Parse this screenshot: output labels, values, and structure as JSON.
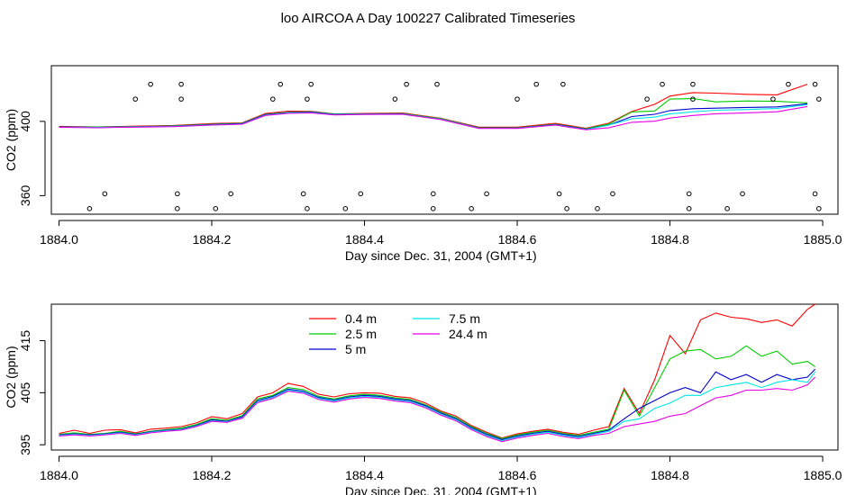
{
  "title": "loo AIRCOA A  Day 100227  Calibrated Timeseries",
  "colors": {
    "0.4 m": "#ff0000",
    "2.5 m": "#00cc00",
    "5 m": "#0000cc",
    "7.5 m": "#00e5e5",
    "24.4 m": "#e600e6",
    "axis": "#000000"
  },
  "chart_data": [
    {
      "type": "line",
      "xlabel": "Day since Dec. 31, 2004 (GMT+1)",
      "ylabel": "CO2 (ppm)",
      "xlim": [
        1883.99,
        1885.02
      ],
      "ylim": [
        350,
        430
      ],
      "xticks": [
        1884.0,
        1884.2,
        1884.4,
        1884.6,
        1884.8,
        1885.0
      ],
      "xtick_labels": [
        "1884.0",
        "1884.2",
        "1884.4",
        "1884.6",
        "1884.8",
        "1885.0"
      ],
      "yticks": [
        360,
        400
      ],
      "ytick_labels": [
        "360",
        "400"
      ],
      "grid": false,
      "x": [
        1884.0,
        1884.05,
        1884.1,
        1884.15,
        1884.2,
        1884.24,
        1884.27,
        1884.3,
        1884.33,
        1884.36,
        1884.4,
        1884.45,
        1884.5,
        1884.55,
        1884.6,
        1884.65,
        1884.69,
        1884.72,
        1884.75,
        1884.78,
        1884.8,
        1884.83,
        1884.86,
        1884.9,
        1884.94,
        1884.98
      ],
      "series": [
        {
          "name": "0.4 m",
          "values": [
            397.3,
            397.0,
            397.4,
            397.8,
            398.8,
            399.2,
            404.2,
            405.5,
            405.4,
            404.0,
            404.3,
            404.5,
            401.7,
            396.9,
            396.9,
            398.9,
            396.3,
            399.0,
            405.3,
            409.2,
            413.6,
            415.5,
            415.2,
            414.6,
            414.3,
            420.0
          ]
        },
        {
          "name": "2.5 m",
          "values": [
            397.0,
            397.0,
            397.2,
            397.6,
            398.5,
            399.0,
            403.8,
            404.9,
            405.2,
            404.0,
            404.0,
            404.2,
            401.5,
            396.6,
            396.6,
            398.5,
            396.0,
            398.6,
            405.1,
            405.6,
            412.0,
            412.3,
            410.5,
            411.0,
            410.8,
            410.0
          ]
        },
        {
          "name": "5 m",
          "values": [
            397.0,
            396.8,
            397.1,
            397.4,
            398.3,
            398.8,
            403.6,
            404.7,
            405.0,
            403.8,
            403.9,
            404.0,
            401.2,
            396.4,
            396.4,
            398.3,
            395.8,
            398.0,
            402.6,
            403.8,
            405.8,
            406.8,
            407.1,
            407.5,
            407.8,
            409.5
          ]
        },
        {
          "name": "7.5 m",
          "values": [
            396.9,
            396.7,
            397.0,
            397.3,
            398.1,
            398.6,
            403.4,
            404.5,
            404.8,
            403.6,
            403.8,
            403.9,
            401.1,
            396.3,
            396.3,
            398.1,
            395.6,
            398.0,
            401.4,
            402.3,
            404.0,
            405.2,
            406.0,
            406.4,
            406.9,
            409.0
          ]
        },
        {
          "name": "24.4 m",
          "values": [
            396.8,
            396.6,
            396.9,
            397.2,
            398.0,
            398.5,
            403.2,
            404.3,
            404.6,
            403.5,
            403.7,
            403.8,
            401.0,
            396.2,
            396.2,
            398.0,
            395.5,
            396.6,
            399.5,
            400.1,
            401.8,
            403.2,
            404.1,
            404.6,
            405.2,
            408.0
          ]
        }
      ],
      "points": {
        "x": [
          1884.04,
          1884.06,
          1884.1,
          1884.12,
          1884.155,
          1884.155,
          1884.16,
          1884.16,
          1884.205,
          1884.225,
          1884.28,
          1884.29,
          1884.32,
          1884.325,
          1884.325,
          1884.33,
          1884.375,
          1884.395,
          1884.44,
          1884.455,
          1884.49,
          1884.49,
          1884.495,
          1884.54,
          1884.56,
          1884.6,
          1884.625,
          1884.655,
          1884.66,
          1884.665,
          1884.705,
          1884.725,
          1884.77,
          1884.79,
          1884.825,
          1884.825,
          1884.83,
          1884.83,
          1884.875,
          1884.895,
          1884.935,
          1884.955,
          1884.99,
          1884.99,
          1884.995,
          1884.995
        ],
        "y": [
          353,
          361,
          412,
          420,
          353,
          361,
          412,
          420,
          353,
          361,
          412,
          420,
          361,
          353,
          412,
          420,
          353,
          361,
          412,
          420,
          353,
          361,
          420,
          353,
          361,
          412,
          420,
          361,
          420,
          353,
          353,
          361,
          412,
          420,
          353,
          361,
          412,
          420,
          353,
          361,
          412,
          420,
          361,
          420,
          412,
          353
        ]
      }
    },
    {
      "type": "line",
      "xlabel": "Day since Dec. 31, 2004 (GMT+1)",
      "ylabel": "CO2 (ppm)",
      "xlim": [
        1883.99,
        1885.02
      ],
      "ylim": [
        394,
        422
      ],
      "xticks": [
        1884.0,
        1884.2,
        1884.4,
        1884.6,
        1884.8,
        1885.0
      ],
      "xtick_labels": [
        "1884.0",
        "1884.2",
        "1884.4",
        "1884.6",
        "1884.8",
        "1885.0"
      ],
      "yticks": [
        395,
        405,
        415
      ],
      "ytick_labels": [
        "395",
        "405",
        "415"
      ],
      "grid": false,
      "legend": [
        "0.4 m",
        "2.5 m",
        "5 m",
        "7.5 m",
        "24.4 m"
      ],
      "legend_position": "top-left",
      "x": [
        1884.0,
        1884.02,
        1884.04,
        1884.06,
        1884.08,
        1884.1,
        1884.12,
        1884.14,
        1884.16,
        1884.18,
        1884.2,
        1884.22,
        1884.24,
        1884.26,
        1884.28,
        1884.3,
        1884.32,
        1884.34,
        1884.36,
        1884.38,
        1884.4,
        1884.42,
        1884.44,
        1884.46,
        1884.48,
        1884.5,
        1884.52,
        1884.54,
        1884.56,
        1884.58,
        1884.6,
        1884.62,
        1884.64,
        1884.66,
        1884.68,
        1884.7,
        1884.72,
        1884.74,
        1884.76,
        1884.78,
        1884.8,
        1884.82,
        1884.84,
        1884.86,
        1884.88,
        1884.9,
        1884.92,
        1884.94,
        1884.96,
        1884.98,
        1884.99
      ],
      "series": [
        {
          "name": "0.4 m",
          "values": [
            397.2,
            397.8,
            397.2,
            397.8,
            397.9,
            397.3,
            398.0,
            398.2,
            398.5,
            399.2,
            400.4,
            400.0,
            401.0,
            404.2,
            405.0,
            406.8,
            406.2,
            404.7,
            404.2,
            404.8,
            405.0,
            404.9,
            404.3,
            404.0,
            403.0,
            401.5,
            400.5,
            398.7,
            397.4,
            396.3,
            397.1,
            397.6,
            398.0,
            397.4,
            397.0,
            397.8,
            398.5,
            405.8,
            401.0,
            407.5,
            416.0,
            412.5,
            419.0,
            420.3,
            419.5,
            419.2,
            418.5,
            419.0,
            417.8,
            421.0,
            422.0
          ]
        },
        {
          "name": "2.5 m",
          "values": [
            397.0,
            397.3,
            397.0,
            397.2,
            397.6,
            397.1,
            397.6,
            397.9,
            398.2,
            398.9,
            400.0,
            399.7,
            400.6,
            403.8,
            404.5,
            406.0,
            405.6,
            404.3,
            403.8,
            404.4,
            404.7,
            404.5,
            404.0,
            403.7,
            402.7,
            401.3,
            400.2,
            398.5,
            397.2,
            396.2,
            396.9,
            397.4,
            397.8,
            397.2,
            396.8,
            397.4,
            398.0,
            405.5,
            400.5,
            406.0,
            411.5,
            413.0,
            413.3,
            411.5,
            412.0,
            414.0,
            412.0,
            413.0,
            410.5,
            411.0,
            410.0
          ]
        },
        {
          "name": "5 m",
          "values": [
            396.9,
            397.1,
            396.9,
            397.1,
            397.4,
            397.0,
            397.5,
            397.8,
            398.0,
            398.7,
            399.8,
            399.5,
            400.4,
            403.5,
            404.3,
            405.7,
            405.3,
            404.1,
            403.6,
            404.2,
            404.5,
            404.3,
            403.8,
            403.5,
            402.5,
            401.1,
            400.0,
            398.3,
            397.0,
            396.0,
            396.7,
            397.2,
            397.6,
            397.0,
            396.6,
            397.2,
            397.8,
            400.0,
            402.0,
            403.5,
            405.0,
            406.0,
            405.0,
            409.0,
            407.5,
            408.5,
            407.0,
            408.5,
            407.5,
            408.0,
            409.5
          ]
        },
        {
          "name": "7.5 m",
          "values": [
            396.8,
            397.0,
            396.8,
            397.0,
            397.3,
            396.9,
            397.4,
            397.7,
            397.9,
            398.6,
            399.6,
            399.4,
            400.2,
            403.3,
            404.1,
            405.5,
            405.1,
            403.9,
            403.4,
            404.0,
            404.3,
            404.1,
            403.6,
            403.3,
            402.3,
            400.9,
            399.8,
            398.1,
            396.8,
            395.8,
            396.5,
            397.0,
            397.4,
            396.8,
            396.4,
            397.0,
            397.6,
            399.5,
            400.0,
            402.0,
            403.0,
            404.5,
            404.5,
            406.0,
            406.5,
            407.0,
            406.0,
            407.0,
            407.5,
            407.0,
            409.0
          ]
        },
        {
          "name": "24.4 m",
          "values": [
            396.7,
            396.9,
            396.7,
            396.9,
            397.2,
            396.8,
            397.3,
            397.6,
            397.8,
            398.5,
            399.5,
            399.3,
            400.1,
            403.1,
            403.9,
            405.3,
            404.9,
            403.7,
            403.2,
            403.8,
            404.1,
            403.9,
            403.4,
            403.1,
            402.1,
            400.7,
            399.6,
            397.9,
            396.6,
            395.6,
            396.3,
            396.8,
            397.2,
            396.6,
            396.2,
            396.8,
            397.2,
            398.5,
            399.0,
            399.5,
            400.5,
            401.0,
            402.5,
            404.0,
            404.5,
            405.5,
            405.5,
            405.8,
            405.5,
            406.5,
            408.0
          ]
        }
      ]
    }
  ]
}
